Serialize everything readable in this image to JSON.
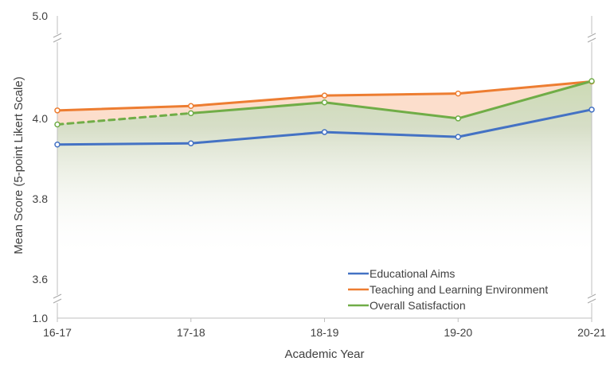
{
  "chart_data": {
    "type": "line",
    "xlabel": "Academic Year",
    "ylabel": "Mean Score (5-point Likert Scale)",
    "categories": [
      "16-17",
      "17-18",
      "18-19",
      "19-20",
      "20-21"
    ],
    "y_ticks": [
      "1.0",
      "3.6",
      "3.8",
      "4.0",
      "5.0"
    ],
    "y_axis_break": {
      "lower": [
        1.0,
        3.55
      ],
      "main": [
        3.55,
        4.2
      ],
      "upper": [
        4.2,
        5.0
      ]
    },
    "grid": false,
    "legend_position": "bottom-right",
    "series": [
      {
        "name": "Educational Aims",
        "color": "#4472c4",
        "values": [
          3.935,
          3.938,
          3.966,
          3.954,
          4.022
        ]
      },
      {
        "name": "Teaching and Learning Environment",
        "color": "#ed7d31",
        "values": [
          4.02,
          4.031,
          4.057,
          4.062,
          4.092
        ]
      },
      {
        "name": "Overall Satisfaction",
        "color": "#70ad47",
        "values": [
          3.985,
          4.013,
          4.04,
          4.0,
          4.093
        ],
        "dashed_segments": [
          0
        ]
      }
    ]
  }
}
